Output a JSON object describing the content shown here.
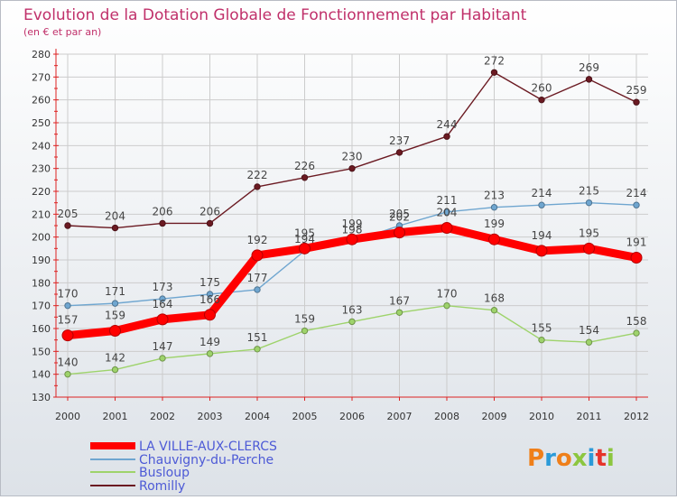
{
  "chart_data": {
    "type": "line",
    "title": "Evolution de la Dotation Globale de Fonctionnement par Habitant",
    "subtitle": "(en € et par an)",
    "xlabel": "",
    "ylabel": "",
    "ylim": [
      130,
      280
    ],
    "yticks": [
      130,
      140,
      150,
      160,
      170,
      180,
      190,
      200,
      210,
      220,
      230,
      240,
      250,
      260,
      270,
      280
    ],
    "x": [
      "2000",
      "2001",
      "2002",
      "2003",
      "2004",
      "2005",
      "2006",
      "2007",
      "2008",
      "2009",
      "2010",
      "2011",
      "2012"
    ],
    "grid": true,
    "legend_position": "bottom-left",
    "series": [
      {
        "name": "Romilly",
        "color": "#6b1a22",
        "values": [
          205,
          204,
          206,
          206,
          222,
          226,
          230,
          237,
          244,
          272,
          260,
          269,
          259
        ],
        "labels": [
          "205",
          "204",
          "206",
          "206",
          "222",
          "226",
          "230",
          "237",
          "244",
          "272",
          "260",
          "269",
          "259"
        ]
      },
      {
        "name": "Chauvigny-du-Perche",
        "color": "#6fa6d0",
        "values": [
          170,
          171,
          173,
          175,
          177,
          194,
          198,
          205,
          211,
          213,
          214,
          215,
          214
        ],
        "labels": [
          "170",
          "171",
          "173",
          "175",
          "177",
          "194",
          "198",
          "205",
          "211",
          "213",
          "214",
          "215",
          "214"
        ]
      },
      {
        "name": "Busloup",
        "color": "#9ed36b",
        "values": [
          140,
          142,
          147,
          149,
          151,
          159,
          163,
          167,
          170,
          168,
          155,
          154,
          158
        ],
        "labels": [
          "140",
          "142",
          "147",
          "149",
          "151",
          "159",
          "163",
          "167",
          "170",
          "168",
          "155",
          "154",
          "158"
        ]
      },
      {
        "name": "LA VILLE-AUX-CLERCS",
        "color": "#ff0000",
        "values": [
          157,
          159,
          164,
          166,
          192,
          195,
          199,
          202,
          204,
          199,
          194,
          195,
          191
        ],
        "labels": [
          "157",
          "159",
          "164",
          "166",
          "192",
          "195",
          "199",
          "202",
          "204",
          "199",
          "194",
          "195",
          "191"
        ]
      }
    ],
    "legend_order": [
      "LA VILLE-AUX-CLERCS",
      "Chauvigny-du-Perche",
      "Busloup",
      "Romilly"
    ]
  },
  "logo": {
    "text": "Proxiti",
    "colors": [
      "#ef7f1a",
      "#2b9ad8",
      "#ef7f1a",
      "#8cc63f",
      "#2b9ad8",
      "#e6332a",
      "#8cc63f"
    ]
  },
  "colors": {
    "title": "#c0306a",
    "axis": "#dd2222",
    "grid": "#cccccc",
    "background_top": "#ffffff",
    "background_bottom": "#dde2e8",
    "label_text": "#444444",
    "legend_text": "#4d5ad6"
  }
}
